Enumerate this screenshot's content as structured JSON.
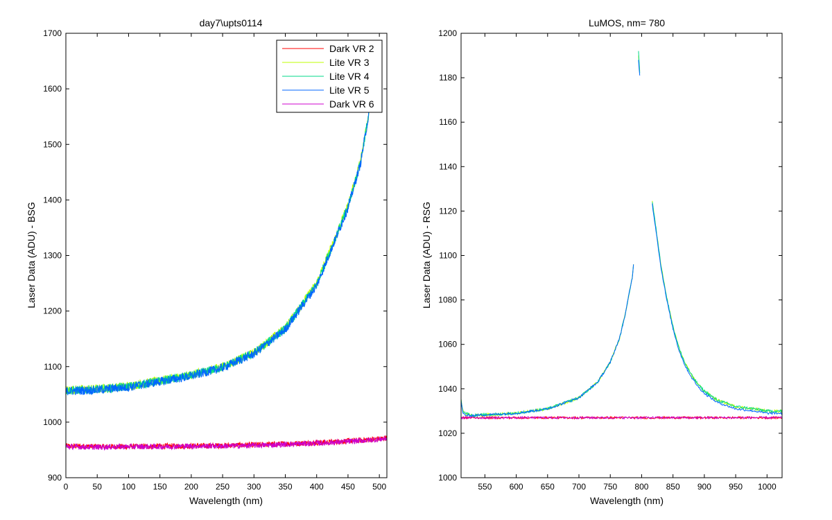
{
  "chart_data": [
    {
      "type": "line",
      "title": "day7\\upts0114",
      "xlabel": "Wavelength (nm)",
      "ylabel": "Laser Data (ADU) - BSG",
      "xlim": [
        0,
        512
      ],
      "ylim": [
        900,
        1700
      ],
      "xticks": [
        0,
        50,
        100,
        150,
        200,
        250,
        300,
        350,
        400,
        450,
        500
      ],
      "yticks": [
        900,
        1000,
        1100,
        1200,
        1300,
        1400,
        1500,
        1600,
        1700
      ],
      "grid": false,
      "legend_position": "top-right",
      "series": [
        {
          "name": "Dark VR 2",
          "color": "#ff0000",
          "x": [
            0,
            50,
            100,
            150,
            200,
            250,
            300,
            350,
            400,
            450,
            500,
            512
          ],
          "y": [
            957,
            956,
            956,
            957,
            957,
            958,
            959,
            961,
            963,
            966,
            970,
            972
          ],
          "noise": 5
        },
        {
          "name": "Lite VR 3",
          "color": "#bfff00",
          "x": [
            0,
            50,
            100,
            150,
            200,
            250,
            300,
            350,
            400,
            450,
            470,
            490
          ],
          "y": [
            1058,
            1060,
            1065,
            1075,
            1085,
            1100,
            1125,
            1170,
            1250,
            1390,
            1470,
            1600
          ],
          "noise": 8
        },
        {
          "name": "Lite VR 4",
          "color": "#00d88a",
          "x": [
            0,
            50,
            100,
            150,
            200,
            250,
            300,
            350,
            400,
            450,
            470,
            490
          ],
          "y": [
            1057,
            1059,
            1064,
            1074,
            1084,
            1099,
            1124,
            1168,
            1248,
            1388,
            1468,
            1600
          ],
          "noise": 8
        },
        {
          "name": "Lite VR 5",
          "color": "#0066ff",
          "x": [
            0,
            50,
            100,
            150,
            200,
            250,
            300,
            350,
            400,
            450,
            470,
            490
          ],
          "y": [
            1056,
            1058,
            1063,
            1073,
            1083,
            1098,
            1123,
            1167,
            1246,
            1386,
            1466,
            1600
          ],
          "noise": 8
        },
        {
          "name": "Dark VR 6",
          "color": "#cc00cc",
          "x": [
            0,
            50,
            100,
            150,
            200,
            250,
            300,
            350,
            400,
            450,
            500,
            512
          ],
          "y": [
            956,
            955,
            956,
            956,
            957,
            957,
            958,
            960,
            962,
            965,
            969,
            971
          ],
          "noise": 5
        }
      ]
    },
    {
      "type": "line",
      "title": "LuMOS, nm= 780",
      "xlabel": "Wavelength (nm)",
      "ylabel": "Laser Data (ADU) - RSG",
      "xlim": [
        512,
        1024
      ],
      "ylim": [
        1000,
        1200
      ],
      "xticks": [
        550,
        600,
        650,
        700,
        750,
        800,
        850,
        900,
        950,
        1000
      ],
      "yticks": [
        1000,
        1020,
        1040,
        1060,
        1080,
        1100,
        1120,
        1140,
        1160,
        1180,
        1200
      ],
      "grid": false,
      "legend_position": "none",
      "series": [
        {
          "name": "Dark VR 2",
          "color": "#ff0000",
          "segments": [
            {
              "x": [
                512,
                1024
              ],
              "y": [
                1027,
                1027
              ]
            }
          ],
          "noise": 0.5
        },
        {
          "name": "Lite VR 3",
          "color": "#bfff00",
          "segments": [
            {
              "x": [
                512,
                515,
                520,
                530,
                600,
                650,
                700,
                730,
                750,
                765,
                775,
                780,
                785,
                787
              ],
              "y": [
                1035,
                1030,
                1029,
                1028,
                1029,
                1031,
                1036,
                1043,
                1052,
                1063,
                1075,
                1083,
                1090,
                1096
              ]
            },
            {
              "x": [
                795,
                796,
                797
              ],
              "y": [
                1190,
                1186,
                1183
              ]
            },
            {
              "x": [
                817,
                820,
                825,
                830,
                835,
                840,
                850,
                860,
                870,
                880,
                890,
                900,
                920,
                950,
                980,
                1000,
                1024
              ],
              "y": [
                1124,
                1118,
                1108,
                1097,
                1089,
                1081,
                1068,
                1058,
                1051,
                1046,
                1042,
                1039,
                1035,
                1032,
                1031,
                1030,
                1030
              ]
            }
          ],
          "noise": 0.6
        },
        {
          "name": "Lite VR 4",
          "color": "#00d88a",
          "segments": [
            {
              "x": [
                512,
                515,
                520,
                530,
                600,
                650,
                700,
                730,
                750,
                765,
                775,
                780,
                785,
                787
              ],
              "y": [
                1035,
                1030,
                1029,
                1028,
                1029,
                1031,
                1036,
                1043,
                1052,
                1063,
                1075,
                1083,
                1090,
                1096
              ]
            },
            {
              "x": [
                795,
                796,
                797
              ],
              "y": [
                1192,
                1187,
                1182
              ]
            },
            {
              "x": [
                817,
                820,
                825,
                830,
                835,
                840,
                850,
                860,
                870,
                880,
                890,
                900,
                920,
                950,
                980,
                1000,
                1024
              ],
              "y": [
                1124,
                1118,
                1108,
                1097,
                1089,
                1081,
                1068,
                1058,
                1051,
                1046,
                1042,
                1039,
                1035,
                1032,
                1031,
                1030,
                1030
              ]
            }
          ],
          "noise": 0.6
        },
        {
          "name": "Lite VR 5",
          "color": "#0066ff",
          "segments": [
            {
              "x": [
                512,
                515,
                520,
                530,
                600,
                650,
                700,
                730,
                750,
                765,
                775,
                780,
                785,
                787
              ],
              "y": [
                1034,
                1029,
                1028,
                1028,
                1029,
                1031,
                1036,
                1043,
                1052,
                1063,
                1075,
                1083,
                1090,
                1096
              ]
            },
            {
              "x": [
                795,
                796,
                797
              ],
              "y": [
                1188,
                1184,
                1181
              ]
            },
            {
              "x": [
                817,
                820,
                825,
                830,
                835,
                840,
                850,
                860,
                870,
                880,
                890,
                900,
                920,
                950,
                980,
                1000,
                1024
              ],
              "y": [
                1123,
                1117,
                1107,
                1096,
                1088,
                1080,
                1067,
                1057,
                1050,
                1045,
                1041,
                1038,
                1034,
                1031,
                1030,
                1029,
                1029
              ]
            }
          ],
          "noise": 0.5
        },
        {
          "name": "Dark VR 6",
          "color": "#cc00cc",
          "segments": [
            {
              "x": [
                512,
                1024
              ],
              "y": [
                1027,
                1027
              ]
            }
          ],
          "noise": 0.5
        }
      ]
    }
  ]
}
